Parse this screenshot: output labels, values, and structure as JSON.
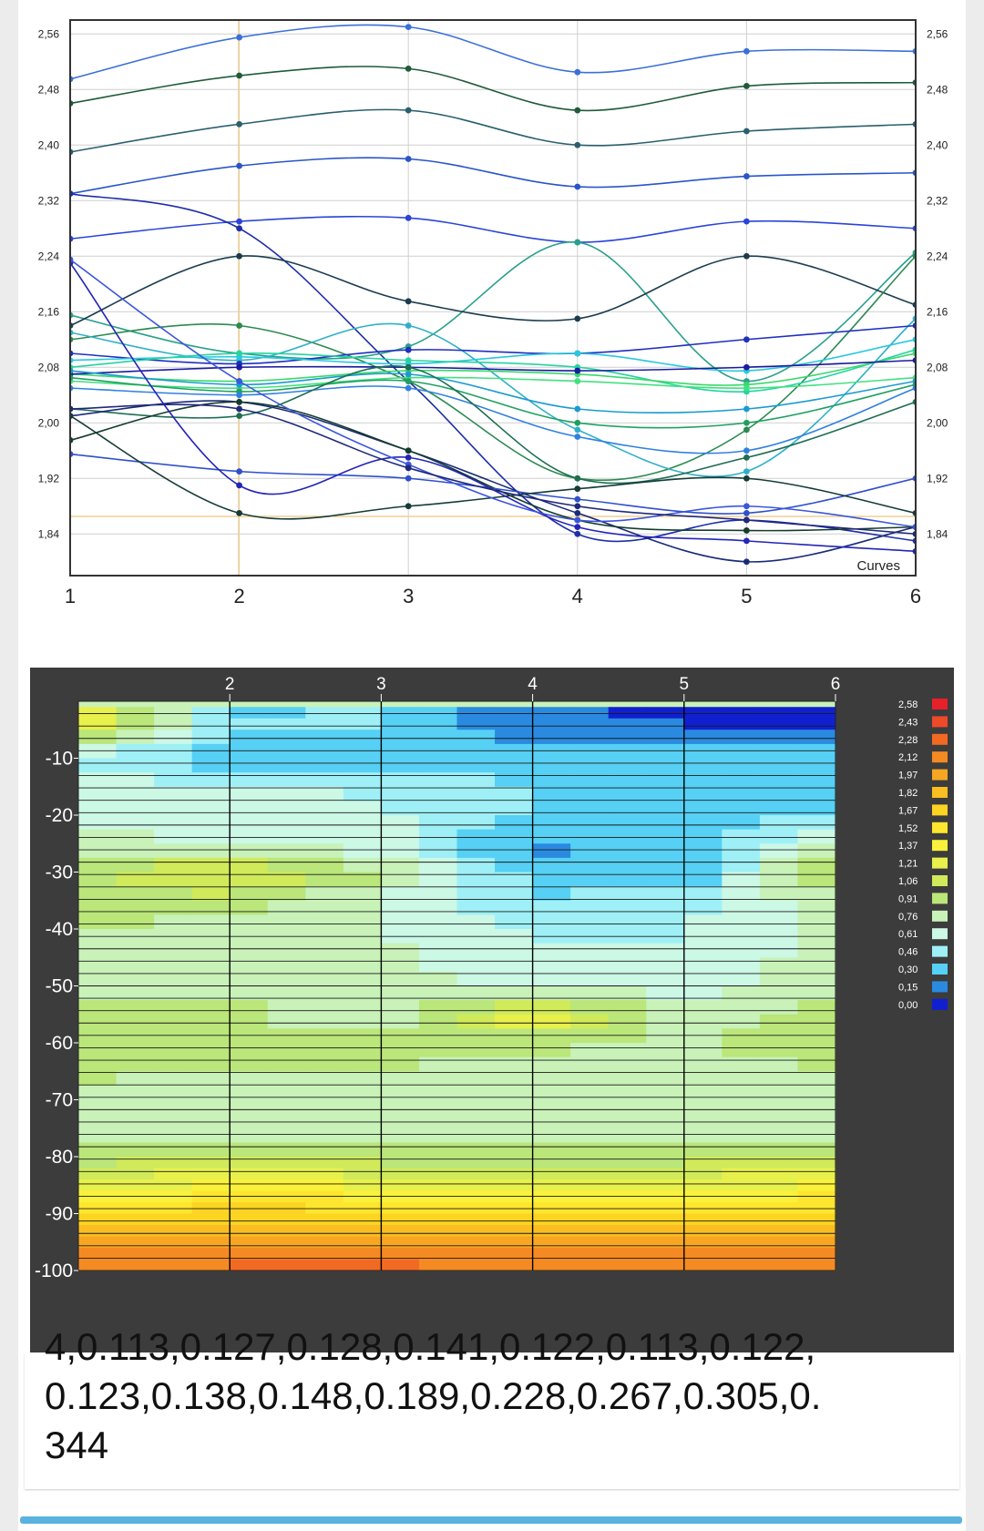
{
  "chart_data": [
    {
      "type": "line",
      "legend": "Curves",
      "legend_position": "bottom-right",
      "grid": true,
      "x": [
        1,
        2,
        3,
        4,
        5,
        6
      ],
      "xlim": [
        1,
        6
      ],
      "ylim": [
        1.78,
        2.58
      ],
      "yticks": [
        "1,84",
        "1,92",
        "2,00",
        "2,08",
        "2,16",
        "2,24",
        "2,32",
        "2,40",
        "2,48",
        "2,56"
      ],
      "yticks_values": [
        1.84,
        1.92,
        2.0,
        2.08,
        2.16,
        2.24,
        2.32,
        2.4,
        2.48,
        2.56
      ],
      "xticks": [
        "1",
        "2",
        "3",
        "4",
        "5",
        "6"
      ],
      "series": [
        {
          "color": "#3b6fd8",
          "values": [
            2.495,
            2.555,
            2.57,
            2.505,
            2.535,
            2.535
          ]
        },
        {
          "color": "#1f5b3a",
          "values": [
            2.46,
            2.5,
            2.51,
            2.45,
            2.485,
            2.49
          ]
        },
        {
          "color": "#2a5f6e",
          "values": [
            2.39,
            2.43,
            2.45,
            2.4,
            2.42,
            2.43
          ]
        },
        {
          "color": "#2a55c8",
          "values": [
            2.33,
            2.37,
            2.38,
            2.34,
            2.355,
            2.36
          ]
        },
        {
          "color": "#2a44d8",
          "values": [
            2.265,
            2.29,
            2.295,
            2.26,
            2.29,
            2.28
          ]
        },
        {
          "color": "#1e2ea8",
          "values": [
            2.33,
            2.28,
            2.06,
            1.84,
            1.86,
            1.83
          ]
        },
        {
          "color": "#2aa08c",
          "values": [
            2.155,
            2.1,
            2.11,
            2.26,
            2.06,
            2.245
          ]
        },
        {
          "color": "#1c3c4e",
          "values": [
            2.14,
            2.24,
            2.175,
            2.15,
            2.24,
            2.17
          ]
        },
        {
          "color": "#2b8a50",
          "values": [
            2.12,
            2.14,
            2.06,
            1.92,
            1.99,
            2.24
          ]
        },
        {
          "color": "#2eb0c8",
          "values": [
            2.13,
            2.09,
            2.14,
            1.99,
            1.93,
            2.15
          ]
        },
        {
          "color": "#1f2fc0",
          "values": [
            2.1,
            2.085,
            2.105,
            2.1,
            2.12,
            2.14
          ]
        },
        {
          "color": "#28c8dc",
          "values": [
            2.09,
            2.095,
            2.085,
            2.1,
            2.075,
            2.12
          ]
        },
        {
          "color": "#24d4a0",
          "values": [
            2.08,
            2.1,
            2.09,
            2.08,
            2.045,
            2.105
          ]
        },
        {
          "color": "#3ad86a",
          "values": [
            2.07,
            2.06,
            2.075,
            2.07,
            2.055,
            2.1
          ]
        },
        {
          "color": "#1b1ba0",
          "values": [
            2.07,
            2.08,
            2.08,
            2.075,
            2.08,
            2.09
          ]
        },
        {
          "color": "#42e080",
          "values": [
            2.06,
            2.05,
            2.065,
            2.06,
            2.05,
            2.065
          ]
        },
        {
          "color": "#1a9ad0",
          "values": [
            2.075,
            2.055,
            2.07,
            2.02,
            2.02,
            2.06
          ]
        },
        {
          "color": "#20a060",
          "values": [
            2.065,
            2.045,
            2.06,
            2.0,
            2.0,
            2.055
          ]
        },
        {
          "color": "#3080e0",
          "values": [
            2.05,
            2.04,
            2.05,
            1.98,
            1.96,
            2.05
          ]
        },
        {
          "color": "#1e6e52",
          "values": [
            2.02,
            2.01,
            2.08,
            1.92,
            1.95,
            2.03
          ]
        },
        {
          "color": "#1a2a7a",
          "values": [
            2.01,
            2.03,
            1.96,
            1.87,
            1.8,
            1.85
          ]
        },
        {
          "color": "#143c2c",
          "values": [
            1.975,
            2.03,
            1.96,
            1.86,
            1.845,
            1.85
          ]
        },
        {
          "color": "#2f4fcc",
          "values": [
            1.955,
            1.93,
            1.92,
            1.89,
            1.87,
            1.92
          ]
        },
        {
          "color": "#153c38",
          "values": [
            2.01,
            1.87,
            1.88,
            1.905,
            1.92,
            1.87
          ]
        },
        {
          "color": "#2424b8",
          "values": [
            2.23,
            1.91,
            1.95,
            1.85,
            1.83,
            1.815
          ]
        },
        {
          "color": "#3b55dc",
          "values": [
            2.235,
            2.06,
            1.94,
            1.86,
            1.88,
            1.85
          ]
        },
        {
          "color": "#20287a",
          "values": [
            2.02,
            2.02,
            1.935,
            1.88,
            1.86,
            1.84
          ]
        }
      ]
    },
    {
      "type": "heatmap",
      "subtype": "contour",
      "xticks": [
        "2",
        "3",
        "4",
        "5",
        "6"
      ],
      "yticks": [
        "-10",
        "-20",
        "-30",
        "-40",
        "-50",
        "-60",
        "-70",
        "-80",
        "-90",
        "-100"
      ],
      "ylim": [
        -100,
        0
      ],
      "xlim": [
        1,
        6
      ],
      "colorbar": {
        "labels": [
          "2,58",
          "2,43",
          "2,28",
          "2,12",
          "1,97",
          "1,82",
          "1,67",
          "1,52",
          "1,37",
          "1,21",
          "1,06",
          "0,91",
          "0,76",
          "0,61",
          "0,46",
          "0,30",
          "0,15",
          "0,00"
        ],
        "colors": [
          "#e8202a",
          "#ee4a28",
          "#f26a22",
          "#f58a22",
          "#f8a622",
          "#fabe22",
          "#fcd422",
          "#fee62e",
          "#faf23a",
          "#e8f04c",
          "#d0ea5a",
          "#bae67a",
          "#c8f2b8",
          "#ccf8e6",
          "#9ef0f6",
          "#56d0f4",
          "#2a8ae0",
          "#1020d0"
        ]
      },
      "rows": [
        {
          "depth": -1,
          "values": [
            1.4,
            0.35,
            0.4,
            0.1,
            0.05,
            0.0
          ]
        },
        {
          "depth": -5,
          "values": [
            1.2,
            0.4,
            0.38,
            0.12,
            0.08,
            0.1
          ]
        },
        {
          "depth": -10,
          "values": [
            0.5,
            0.25,
            0.28,
            0.35,
            0.35,
            0.3
          ]
        },
        {
          "depth": -15,
          "values": [
            0.62,
            0.55,
            0.5,
            0.36,
            0.32,
            0.32
          ]
        },
        {
          "depth": -20,
          "values": [
            0.66,
            0.6,
            0.55,
            0.4,
            0.3,
            0.35
          ]
        },
        {
          "depth": -25,
          "values": [
            0.78,
            0.65,
            0.6,
            0.15,
            0.35,
            0.7
          ]
        },
        {
          "depth": -30,
          "values": [
            0.95,
            1.2,
            0.85,
            0.3,
            0.2,
            1.05
          ]
        },
        {
          "depth": -35,
          "values": [
            0.92,
            0.95,
            0.65,
            0.4,
            0.45,
            0.8
          ]
        },
        {
          "depth": -40,
          "values": [
            0.85,
            0.75,
            0.7,
            0.5,
            0.52,
            0.72
          ]
        },
        {
          "depth": -45,
          "values": [
            0.8,
            0.74,
            0.72,
            0.55,
            0.55,
            0.74
          ]
        },
        {
          "depth": -50,
          "values": [
            0.82,
            0.8,
            0.78,
            0.6,
            0.62,
            0.82
          ]
        },
        {
          "depth": -55,
          "values": [
            0.88,
            0.88,
            0.7,
            1.3,
            0.75,
            0.9
          ]
        },
        {
          "depth": -60,
          "values": [
            0.92,
            0.9,
            0.9,
            0.88,
            0.8,
            0.95
          ]
        },
        {
          "depth": -65,
          "values": [
            0.86,
            0.84,
            0.82,
            0.8,
            0.76,
            0.84
          ]
        },
        {
          "depth": -70,
          "values": [
            0.78,
            0.76,
            0.76,
            0.72,
            0.72,
            0.74
          ]
        },
        {
          "depth": -75,
          "values": [
            0.8,
            0.78,
            0.78,
            0.76,
            0.74,
            0.8
          ]
        },
        {
          "depth": -80,
          "values": [
            0.92,
            0.94,
            0.92,
            0.9,
            0.92,
            0.95
          ]
        },
        {
          "depth": -84,
          "values": [
            1.15,
            1.25,
            1.2,
            1.1,
            1.2,
            1.22
          ]
        },
        {
          "depth": -88,
          "values": [
            1.45,
            1.55,
            1.5,
            1.4,
            1.5,
            1.52
          ]
        },
        {
          "depth": -92,
          "values": [
            1.72,
            1.8,
            1.8,
            1.72,
            1.78,
            1.8
          ]
        },
        {
          "depth": -96,
          "values": [
            2.0,
            2.1,
            2.1,
            2.0,
            2.05,
            2.08
          ]
        },
        {
          "depth": -100,
          "values": [
            2.15,
            2.25,
            2.28,
            2.18,
            2.2,
            2.22
          ]
        }
      ]
    }
  ],
  "text": {
    "line1": "4,0.113,0.127,0.128,0.141,0.122,0.113,0.122,",
    "line2": "0.123,0.138,0.148,0.189,0.228,0.267,0.305,0.",
    "line3": "344"
  }
}
